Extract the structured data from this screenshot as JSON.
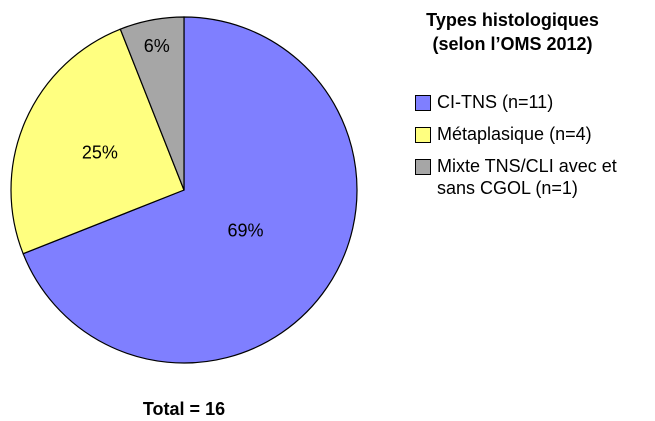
{
  "chart_data": {
    "type": "pie",
    "legend_title": "Types histologiques (selon l’OMS 2012)",
    "categories": [
      "CI-TNS (n=11)",
      "Métaplasique (n=4)",
      "Mixte TNS/CLI avec et sans CGOL (n=1)"
    ],
    "values": [
      69,
      25,
      6
    ],
    "value_labels": [
      "69%",
      "25%",
      "6%"
    ],
    "colors": [
      "#7f7fff",
      "#ffff80",
      "#a6a6a6"
    ],
    "footnote": "Total = 16",
    "legend": "right"
  }
}
